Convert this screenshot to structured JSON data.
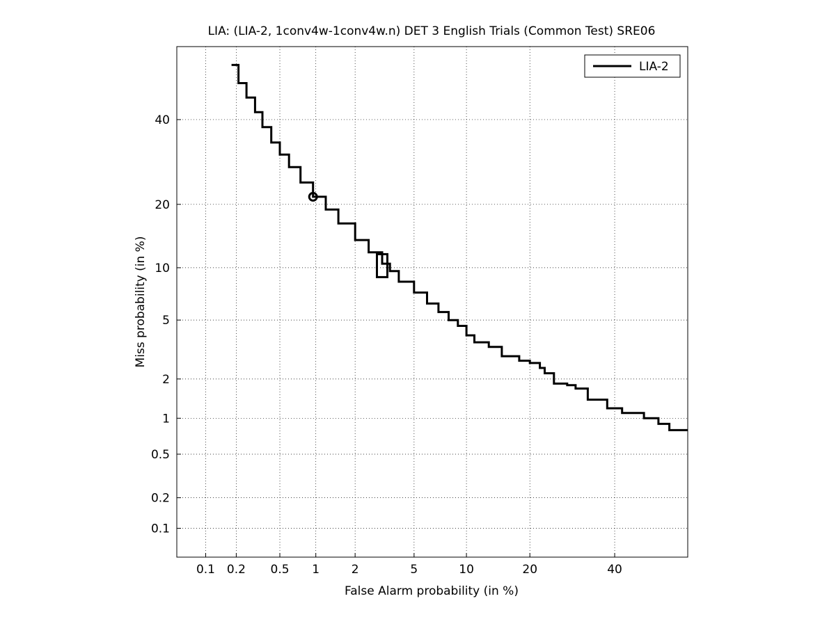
{
  "chart_data": {
    "type": "line",
    "title": "LIA: (LIA-2, 1conv4w-1conv4w.n) DET 3 English Trials (Common Test) SRE06",
    "xlabel": "False Alarm probability (in %)",
    "ylabel": "Miss probability (in %)",
    "x_scale": "probit",
    "y_scale": "probit",
    "xlim": [
      0.05,
      60
    ],
    "ylim": [
      0.05,
      60
    ],
    "x_ticks": [
      0.1,
      0.2,
      0.5,
      1,
      2,
      5,
      10,
      20,
      40
    ],
    "x_tick_labels": [
      "0.1",
      "0.2",
      "0.5",
      "1",
      "2",
      "5",
      "10",
      "20",
      "40"
    ],
    "y_ticks": [
      0.1,
      0.2,
      0.5,
      1,
      2,
      5,
      10,
      20,
      40
    ],
    "y_tick_labels": [
      "0.1",
      "0.2",
      "0.5",
      "1",
      "2",
      "5",
      "10",
      "20",
      "40"
    ],
    "grid": true,
    "legend_position": "top-right",
    "series": [
      {
        "name": "LIA-2",
        "color": "#000000",
        "x": [
          0.18,
          0.21,
          0.25,
          0.3,
          0.35,
          0.42,
          0.5,
          0.6,
          0.75,
          0.95,
          1.2,
          1.5,
          2.0,
          2.5,
          3.1,
          3.5,
          4.0,
          5.0,
          6.0,
          7.0,
          8.0,
          9.0,
          10.0,
          11.0,
          13.0,
          15.0,
          18.0,
          20.0,
          22.0,
          23.0,
          25.0,
          28.0,
          30.0,
          33.0,
          38.0,
          42.0,
          45.0,
          48.0,
          52.0,
          55.0,
          60.0
        ],
        "y": [
          55.0,
          50.0,
          46.0,
          42.0,
          38.0,
          34.0,
          31.0,
          28.0,
          24.5,
          21.5,
          19.0,
          16.5,
          13.8,
          12.0,
          10.5,
          9.6,
          8.4,
          7.3,
          6.3,
          5.6,
          5.0,
          4.6,
          4.0,
          3.6,
          3.35,
          2.9,
          2.7,
          2.6,
          2.4,
          2.2,
          1.85,
          1.8,
          1.7,
          1.4,
          1.2,
          1.1,
          1.1,
          1.0,
          0.9,
          0.8,
          0.8
        ]
      }
    ],
    "markers": [
      {
        "shape": "circle",
        "x": 0.95,
        "y": 21.5
      },
      {
        "shape": "square",
        "x": 3.1,
        "y": 10.3
      }
    ]
  }
}
